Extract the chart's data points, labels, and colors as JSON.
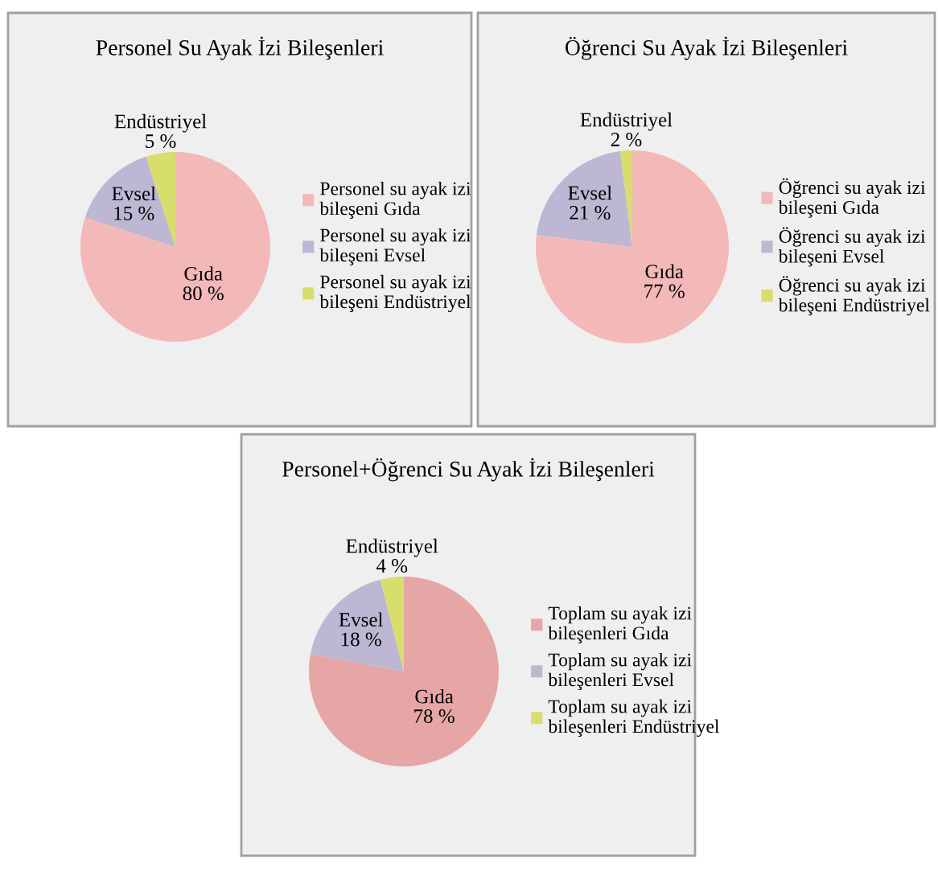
{
  "chart_data": [
    {
      "type": "pie",
      "title": "Personel Su Ayak İzi Bileşenleri",
      "categories": [
        "Personel su ayak izi bileşeni Gıda",
        "Personel su ayak izi bileşeni Evsel",
        "Personel su ayak izi bileşeni Endüstriyel"
      ],
      "values": [
        80,
        15,
        5
      ],
      "colors": [
        "#f2b9b8",
        "#bdb7d3",
        "#d8de6c"
      ],
      "value_labels": [
        "Gıda\n80 %",
        "Evsel\n15 %",
        "Endüstriyel\n5 %"
      ],
      "legend": "right"
    },
    {
      "type": "pie",
      "title": "Öğrenci Su Ayak İzi Bileşenleri",
      "categories": [
        "Öğrenci su ayak izi bileşeni Gıda",
        "Öğrenci su ayak izi bileşeni Evsel",
        "Öğrenci su ayak izi bileşeni Endüstriyel"
      ],
      "values": [
        77,
        21,
        2
      ],
      "colors": [
        "#f2b9b8",
        "#bdb7d3",
        "#d8de6c"
      ],
      "value_labels": [
        "Gıda\n77 %",
        "Evsel\n21 %",
        "Endüstriyel\n2 %"
      ],
      "legend": "right"
    },
    {
      "type": "pie",
      "title": "Personel+Öğrenci Su Ayak İzi Bileşenleri",
      "categories": [
        "Toplam su ayak izi bileşenleri Gıda",
        "Toplam su ayak izi bileşenleri Evsel",
        "Toplam su ayak izi bileşenleri Endüstriyel"
      ],
      "values": [
        78,
        18,
        4
      ],
      "colors": [
        "#e6a6a5",
        "#bdb7d3",
        "#d8de6c"
      ],
      "value_labels": [
        "Gıda\n78 %",
        "Evsel\n18 %",
        "Endüstriyel\n4 %"
      ],
      "legend": "right"
    }
  ]
}
